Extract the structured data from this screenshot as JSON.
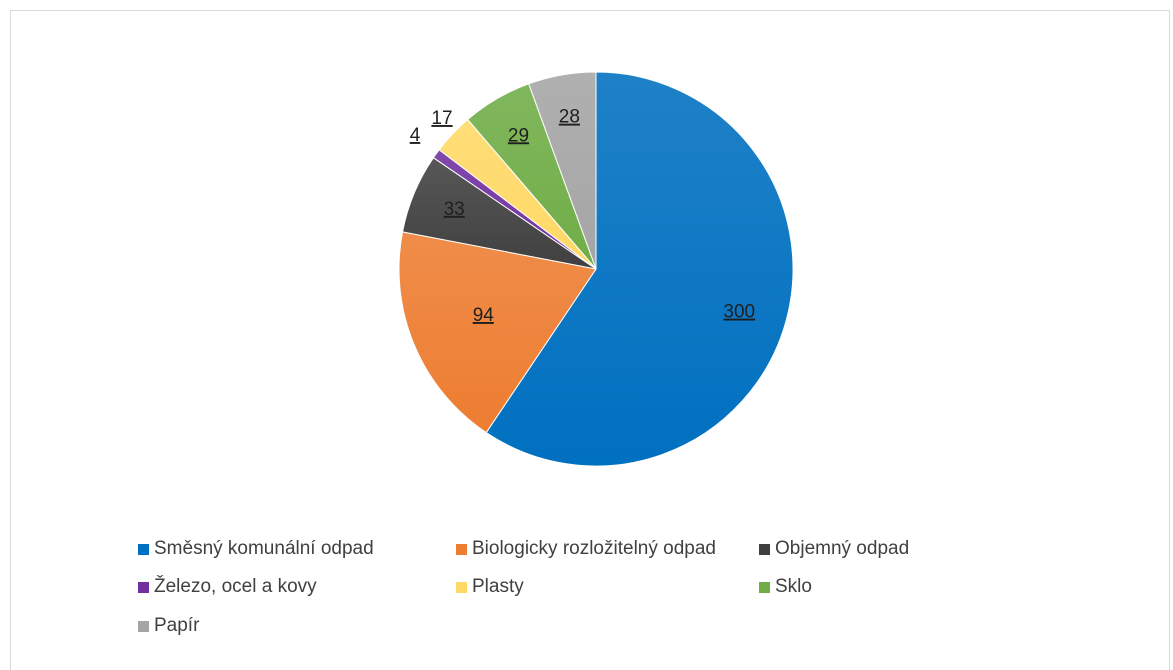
{
  "chart_data": {
    "type": "pie",
    "title": "",
    "categories": [
      "Směsný komunální odpad",
      "Biologicky rozložitelný odpad",
      "Objemný odpad",
      "Železo, ocel a kovy",
      "Plasty",
      "Sklo",
      "Papír"
    ],
    "values": [
      300,
      94,
      33,
      4,
      17,
      29,
      28
    ],
    "colors": [
      "#0070c0",
      "#ed7d31",
      "#404040",
      "#7030a0",
      "#ffd966",
      "#70ad47",
      "#a5a5a5"
    ],
    "legend": "bottom",
    "start_angle": "12 o'clock",
    "direction": "clockwise",
    "data_labels": [
      "300",
      "94",
      "33",
      "4",
      "17",
      "29",
      "28"
    ]
  }
}
